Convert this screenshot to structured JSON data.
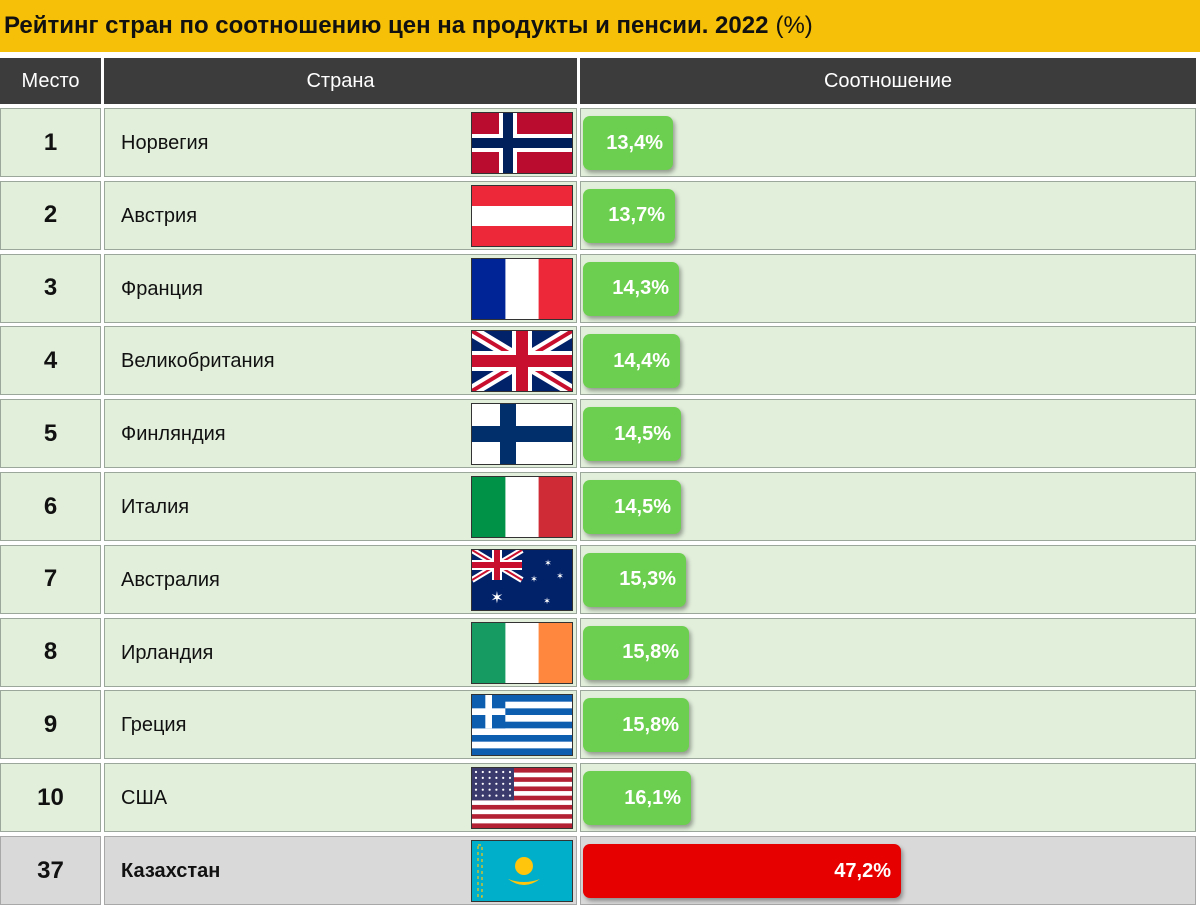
{
  "title": "Рейтинг стран по соотношению цен на продукты и пенсии. 2022",
  "title_unit": "(%)",
  "headers": {
    "place": "Место",
    "country": "Страна",
    "ratio": "Соотношение"
  },
  "colors": {
    "title_background": "#f5c007",
    "header_background": "#3c3c3c",
    "row_background": "#e2efdb",
    "highlight_row_background": "#d9d9d9",
    "bar_green": "#6dcf4f",
    "bar_red": "#e60000"
  },
  "chart_data": {
    "type": "bar",
    "categories": [
      "Норвегия",
      "Австрия",
      "Франция",
      "Великобритания",
      "Финляндия",
      "Италия",
      "Австралия",
      "Ирландия",
      "Греция",
      "США",
      "Казахстан"
    ],
    "values": [
      13.4,
      13.7,
      14.3,
      14.4,
      14.5,
      14.5,
      15.3,
      15.8,
      15.8,
      16.1,
      47.2
    ],
    "title": "Рейтинг стран по соотношению цен на продукты и пенсии. 2022",
    "unit": "%",
    "xlim": [
      0,
      100
    ],
    "rows": [
      {
        "rank": "1",
        "country": "Норвегия",
        "flag": "norway-flag",
        "value": 13.4,
        "label": "13,4%",
        "color": "#6dcf4f"
      },
      {
        "rank": "2",
        "country": "Австрия",
        "flag": "austria-flag",
        "value": 13.7,
        "label": "13,7%",
        "color": "#6dcf4f"
      },
      {
        "rank": "3",
        "country": "Франция",
        "flag": "france-flag",
        "value": 14.3,
        "label": "14,3%",
        "color": "#6dcf4f"
      },
      {
        "rank": "4",
        "country": "Великобритания",
        "flag": "uk-flag",
        "value": 14.4,
        "label": "14,4%",
        "color": "#6dcf4f"
      },
      {
        "rank": "5",
        "country": "Финляндия",
        "flag": "finland-flag",
        "value": 14.5,
        "label": "14,5%",
        "color": "#6dcf4f"
      },
      {
        "rank": "6",
        "country": "Италия",
        "flag": "italy-flag",
        "value": 14.5,
        "label": "14,5%",
        "color": "#6dcf4f"
      },
      {
        "rank": "7",
        "country": "Австралия",
        "flag": "australia-flag",
        "value": 15.3,
        "label": "15,3%",
        "color": "#6dcf4f"
      },
      {
        "rank": "8",
        "country": "Ирландия",
        "flag": "ireland-flag",
        "value": 15.8,
        "label": "15,8%",
        "color": "#6dcf4f"
      },
      {
        "rank": "9",
        "country": "Греция",
        "flag": "greece-flag",
        "value": 15.8,
        "label": "15,8%",
        "color": "#6dcf4f"
      },
      {
        "rank": "10",
        "country": "США",
        "flag": "usa-flag",
        "value": 16.1,
        "label": "16,1%",
        "color": "#6dcf4f"
      },
      {
        "rank": "37",
        "country": "Казахстан",
        "flag": "kazakhstan-flag",
        "value": 47.2,
        "label": "47,2%",
        "color": "#e60000",
        "highlight": true
      }
    ]
  }
}
